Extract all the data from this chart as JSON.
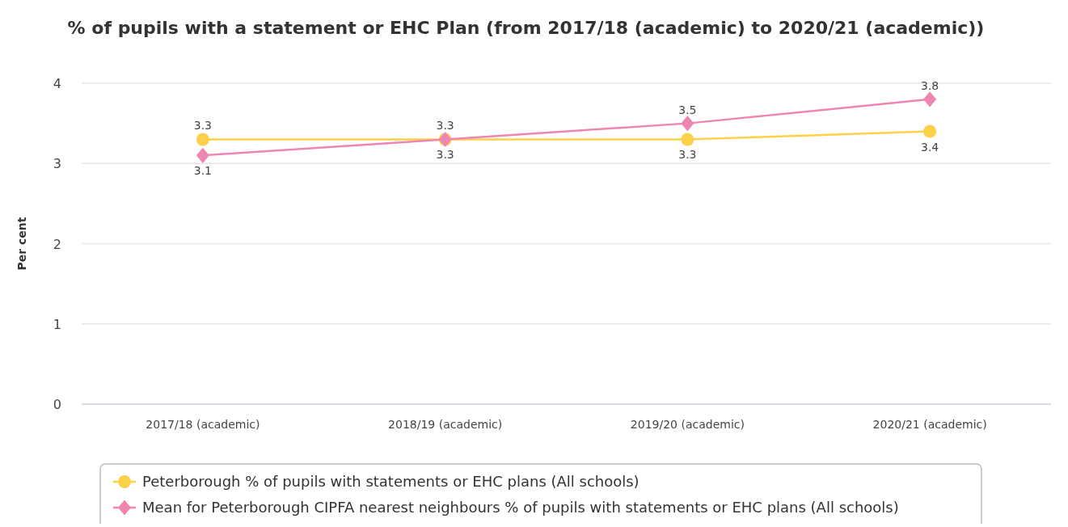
{
  "chart_data": {
    "type": "line",
    "title": "% of pupils with a statement or EHC Plan (from 2017/18 (academic) to 2020/21 (academic))",
    "ylabel": "Per cent",
    "categories": [
      "2017/18 (academic)",
      "2018/19 (academic)",
      "2019/20 (academic)",
      "2020/21 (academic)"
    ],
    "series": [
      {
        "name": "Peterborough % of pupils with statements or EHC plans (All schools)",
        "color": "#fcd149",
        "marker": "circle",
        "values": [
          3.3,
          3.3,
          3.3,
          3.4
        ]
      },
      {
        "name": "Mean for Peterborough CIPFA nearest neighbours % of pupils with statements or EHC plans (All schools)",
        "color": "#ef86b1",
        "marker": "diamond",
        "values": [
          3.1,
          3.3,
          3.5,
          3.8
        ]
      }
    ],
    "ylim": [
      0,
      4
    ],
    "yticks": [
      0,
      1,
      2,
      3,
      4
    ],
    "grid": "y",
    "legend": "bottom",
    "data_labels": true
  }
}
